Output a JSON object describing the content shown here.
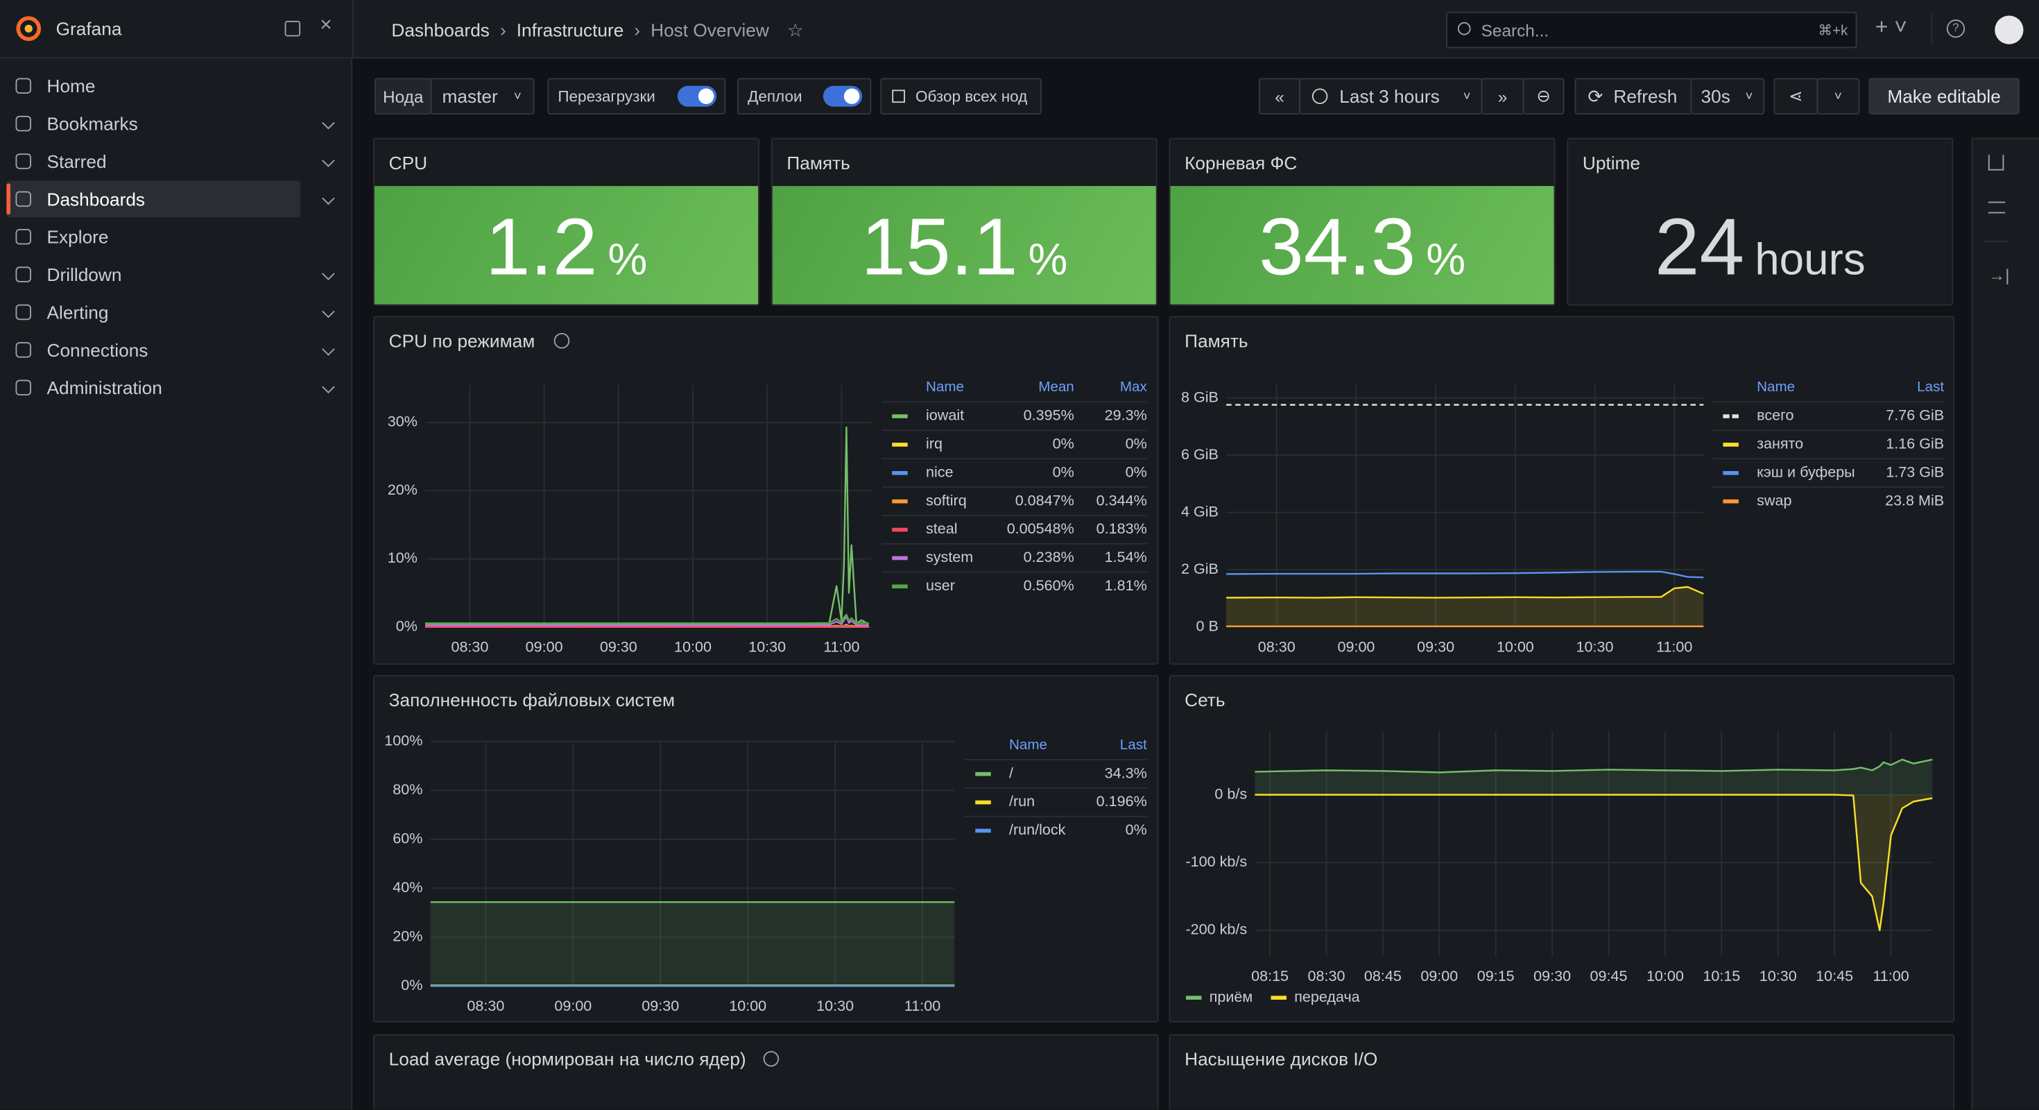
{
  "sidebar": {
    "brand": "Grafana",
    "items": [
      "Home",
      "Bookmarks",
      "Starred",
      "Dashboards",
      "Explore",
      "Drilldown",
      "Alerting",
      "Connections",
      "Administration"
    ]
  },
  "breadcrumbs": [
    "Dashboards",
    "Infrastructure",
    "Host Overview"
  ],
  "search": {
    "placeholder": "Search...",
    "shortcut": "⌘+k"
  },
  "toolbar": {
    "node_label": "Нода",
    "node_value": "master",
    "toggle_reboots": "Перезагрузки",
    "toggle_deploys": "Деплои",
    "all_nodes": "Обзор всех нод",
    "time_range": "Last 3 hours",
    "refresh": "Refresh",
    "interval": "30s",
    "edit": "Make editable"
  },
  "stats": [
    {
      "title": "CPU",
      "value": 1.2,
      "unit": "%"
    },
    {
      "title": "Память",
      "value": 15.1,
      "unit": "%"
    },
    {
      "title": "Корневая ФС",
      "value": 34.3,
      "unit": "%"
    },
    {
      "title": "Uptime",
      "value": 24,
      "unit": "hours"
    }
  ],
  "charts": [
    {
      "type": "line",
      "title": "CPU по режимам",
      "x": [
        "08:12",
        "08:30",
        "08:45",
        "09:00",
        "09:15",
        "09:30",
        "09:45",
        "10:00",
        "10:15",
        "10:30",
        "10:45",
        "10:55",
        "10:58",
        "11:00",
        "11:01",
        "11:02",
        "11:03",
        "11:04",
        "11:06",
        "11:08",
        "11:11"
      ],
      "xlim": [
        "08:12",
        "11:12"
      ],
      "xticks": [
        "08:30",
        "09:00",
        "09:30",
        "10:00",
        "10:30",
        "11:00"
      ],
      "ylim": [
        0,
        35.5
      ],
      "yticks": [
        {
          "value": 0,
          "label": "0%"
        },
        {
          "value": 10,
          "label": "10%"
        },
        {
          "value": 20,
          "label": "20%"
        },
        {
          "value": 30,
          "label": "30%"
        }
      ],
      "grid": true,
      "legend": {
        "columns": [
          "Name",
          "Mean",
          "Max"
        ]
      },
      "series": [
        {
          "name": "iowait",
          "color": "#73bf69",
          "mean": "0.395%",
          "max": "29.3%",
          "values": [
            0.5,
            0.4,
            0.3,
            0.4,
            0.3,
            0.3,
            0.4,
            0.3,
            0.3,
            0.3,
            0.4,
            0.5,
            6,
            1,
            9,
            29.3,
            5,
            12,
            0.5,
            1,
            0.4
          ]
        },
        {
          "name": "irq",
          "color": "#fade2a",
          "mean": "0%",
          "max": "0%",
          "values": [
            0,
            0,
            0,
            0,
            0,
            0,
            0,
            0,
            0,
            0,
            0,
            0,
            0,
            0,
            0,
            0,
            0,
            0,
            0,
            0,
            0
          ]
        },
        {
          "name": "nice",
          "color": "#5794f2",
          "mean": "0%",
          "max": "0%",
          "values": [
            0,
            0,
            0,
            0,
            0,
            0,
            0,
            0,
            0,
            0,
            0,
            0,
            0,
            0,
            0,
            0,
            0,
            0,
            0,
            0,
            0
          ]
        },
        {
          "name": "softirq",
          "color": "#ff9830",
          "mean": "0.0847%",
          "max": "0.344%",
          "values": [
            0.08,
            0.08,
            0.08,
            0.08,
            0.09,
            0.08,
            0.08,
            0.08,
            0.08,
            0.08,
            0.09,
            0.1,
            0.2,
            0.1,
            0.2,
            0.34,
            0.15,
            0.2,
            0.1,
            0.1,
            0.08
          ]
        },
        {
          "name": "steal",
          "color": "#f2495c",
          "mean": "0.00548%",
          "max": "0.183%",
          "values": [
            0.005,
            0.005,
            0.005,
            0.005,
            0.005,
            0.005,
            0.005,
            0.005,
            0.005,
            0.005,
            0.005,
            0.005,
            0.05,
            0.005,
            0.1,
            0.183,
            0.02,
            0.05,
            0.005,
            0.005,
            0.005
          ]
        },
        {
          "name": "system",
          "color": "#b877d9",
          "mean": "0.238%",
          "max": "1.54%",
          "values": [
            0.24,
            0.23,
            0.24,
            0.23,
            0.24,
            0.23,
            0.24,
            0.23,
            0.24,
            0.23,
            0.24,
            0.3,
            0.8,
            0.4,
            1,
            1.54,
            0.6,
            0.9,
            0.3,
            0.3,
            0.24
          ]
        },
        {
          "name": "user",
          "color": "#56a64b",
          "mean": "0.560%",
          "max": "1.81%",
          "values": [
            0.56,
            0.55,
            0.56,
            0.55,
            0.56,
            0.55,
            0.56,
            0.55,
            0.56,
            0.55,
            0.56,
            0.6,
            1.2,
            0.7,
            1.4,
            1.81,
            0.9,
            1.3,
            0.6,
            0.6,
            0.56
          ]
        }
      ]
    },
    {
      "type": "line",
      "title": "Память",
      "x": [
        "08:11",
        "08:30",
        "08:45",
        "09:00",
        "09:15",
        "09:30",
        "09:45",
        "10:00",
        "10:15",
        "10:30",
        "10:45",
        "10:55",
        "11:00",
        "11:05",
        "11:11"
      ],
      "xlim": [
        "08:11",
        "11:11"
      ],
      "xticks": [
        "08:30",
        "09:00",
        "09:30",
        "10:00",
        "10:30",
        "11:00"
      ],
      "ylim": [
        0,
        8.45
      ],
      "yticks": [
        {
          "value": 0,
          "label": "0 B"
        },
        {
          "value": 2,
          "label": "2 GiB"
        },
        {
          "value": 4,
          "label": "4 GiB"
        },
        {
          "value": 6,
          "label": "6 GiB"
        },
        {
          "value": 8,
          "label": "8 GiB"
        }
      ],
      "grid": true,
      "legend": {
        "columns": [
          "Name",
          "Last"
        ]
      },
      "series": [
        {
          "name": "всего",
          "color": "#e0e0e0",
          "dash": true,
          "last": "7.76 GiB",
          "values": [
            7.76,
            7.76,
            7.76,
            7.76,
            7.76,
            7.76,
            7.76,
            7.76,
            7.76,
            7.76,
            7.76,
            7.76,
            7.76,
            7.76,
            7.76
          ]
        },
        {
          "name": "занято",
          "color": "#fade2a",
          "fill": true,
          "last": "1.16 GiB",
          "values": [
            1.02,
            1.03,
            1.02,
            1.04,
            1.03,
            1.02,
            1.03,
            1.04,
            1.03,
            1.04,
            1.05,
            1.05,
            1.35,
            1.4,
            1.16
          ]
        },
        {
          "name": "кэш и буферы",
          "color": "#5794f2",
          "last": "1.73 GiB",
          "values": [
            1.85,
            1.86,
            1.86,
            1.86,
            1.87,
            1.87,
            1.87,
            1.88,
            1.9,
            1.92,
            1.93,
            1.93,
            1.85,
            1.75,
            1.73
          ]
        },
        {
          "name": "swap",
          "color": "#ff9830",
          "last": "23.8 MiB",
          "values": [
            0.0232,
            0.0232,
            0.0232,
            0.0232,
            0.0232,
            0.0232,
            0.0232,
            0.0232,
            0.0232,
            0.0232,
            0.0232,
            0.0232,
            0.0232,
            0.0232,
            0.0232
          ]
        }
      ]
    },
    {
      "type": "line",
      "title": "Заполненность файловых систем",
      "x": [
        "08:11",
        "09:00",
        "10:00",
        "11:11"
      ],
      "xlim": [
        "08:11",
        "11:11"
      ],
      "xticks": [
        "08:30",
        "09:00",
        "09:30",
        "10:00",
        "10:30",
        "11:00"
      ],
      "ylim": [
        0,
        100
      ],
      "yticks": [
        {
          "value": 0,
          "label": "0%"
        },
        {
          "value": 20,
          "label": "20%"
        },
        {
          "value": 40,
          "label": "40%"
        },
        {
          "value": 60,
          "label": "60%"
        },
        {
          "value": 80,
          "label": "80%"
        },
        {
          "value": 100,
          "label": "100%"
        }
      ],
      "grid": true,
      "legend": {
        "columns": [
          "Name",
          "Last"
        ]
      },
      "series": [
        {
          "name": "/",
          "color": "#73bf69",
          "fill": true,
          "last": "34.3%",
          "values": [
            34.3,
            34.3,
            34.3,
            34.3
          ]
        },
        {
          "name": "/run",
          "color": "#fade2a",
          "last": "0.196%",
          "values": [
            0.196,
            0.196,
            0.196,
            0.196
          ]
        },
        {
          "name": "/run/lock",
          "color": "#5794f2",
          "last": "0%",
          "values": [
            0,
            0,
            0,
            0
          ]
        }
      ]
    },
    {
      "type": "line",
      "title": "Сеть",
      "x": [
        "08:11",
        "08:30",
        "08:45",
        "09:00",
        "09:15",
        "09:30",
        "09:45",
        "10:00",
        "10:15",
        "10:30",
        "10:45",
        "10:50",
        "10:52",
        "10:55",
        "10:57",
        "10:58",
        "11:00",
        "11:03",
        "11:06",
        "11:11"
      ],
      "xlim": [
        "08:11",
        "11:11"
      ],
      "xticks": [
        "08:15",
        "08:30",
        "08:45",
        "09:00",
        "09:15",
        "09:30",
        "09:45",
        "10:00",
        "10:15",
        "10:30",
        "10:45",
        "11:00"
      ],
      "ylim": [
        -238,
        94
      ],
      "yticks": [
        {
          "value": -200,
          "label": "-200 kb/s"
        },
        {
          "value": -100,
          "label": "-100 kb/s"
        },
        {
          "value": 0,
          "label": "0 b/s"
        }
      ],
      "grid": true,
      "legend": {
        "position": "bottom"
      },
      "series": [
        {
          "name": "приём",
          "color": "#73bf69",
          "fill": true,
          "values": [
            34,
            36,
            35,
            33,
            36,
            35,
            37,
            36,
            35,
            37,
            36,
            38,
            40,
            36,
            42,
            48,
            44,
            52,
            46,
            52
          ]
        },
        {
          "name": "передача",
          "color": "#fade2a",
          "fill": true,
          "values": [
            0,
            0,
            0,
            0,
            0,
            0,
            0,
            0,
            0,
            0,
            0,
            -1,
            -130,
            -150,
            -200,
            -160,
            -60,
            -20,
            -10,
            -5
          ]
        }
      ]
    }
  ],
  "bottom_panels": [
    "Load average (нормирован на число ядер)",
    "Насыщение дисков I/O"
  ]
}
